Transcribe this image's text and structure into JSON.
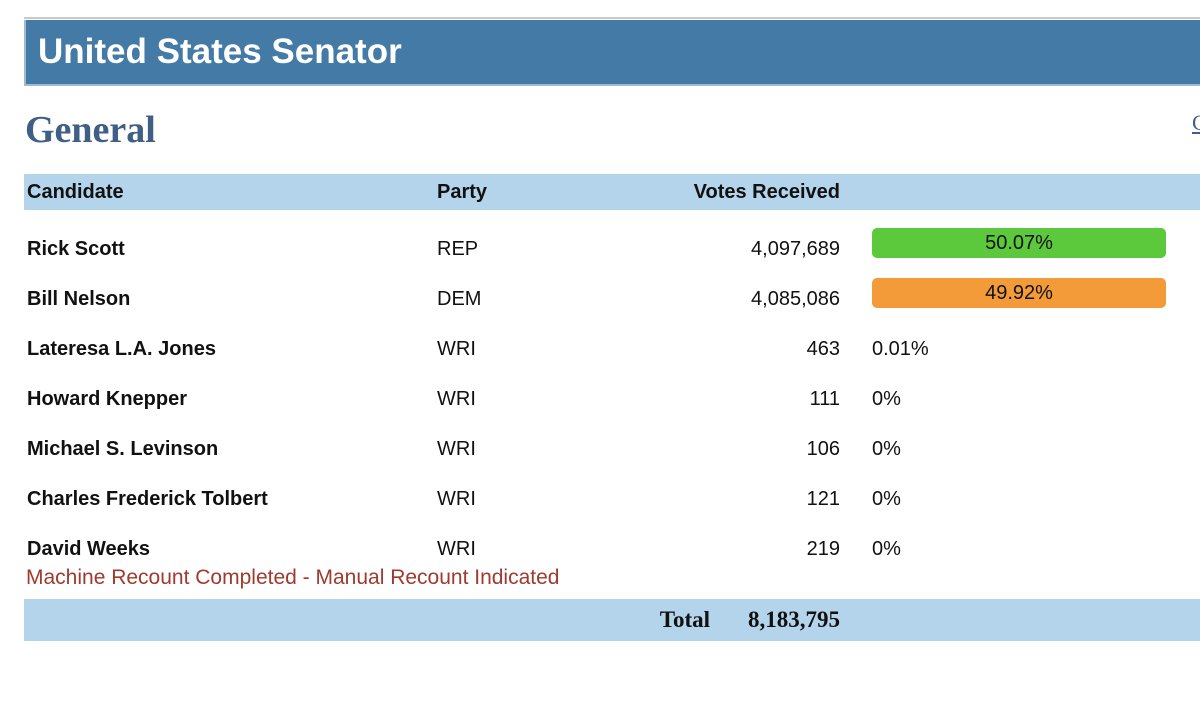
{
  "header": {
    "title": "United States Senator"
  },
  "section": {
    "title": "General",
    "corner_link": "C"
  },
  "table": {
    "columns": {
      "candidate": "Candidate",
      "party": "Party",
      "votes": "Votes Received"
    },
    "rows": [
      {
        "name": "Rick Scott",
        "party": "REP",
        "votes": "4,097,689",
        "percent": "50.07%",
        "bar_color": "#5cc83b"
      },
      {
        "name": "Bill Nelson",
        "party": "DEM",
        "votes": "4,085,086",
        "percent": "49.92%",
        "bar_color": "#f29b38"
      },
      {
        "name": "Lateresa L.A. Jones",
        "party": "WRI",
        "votes": "463",
        "percent": "0.01%"
      },
      {
        "name": "Howard Knepper",
        "party": "WRI",
        "votes": "111",
        "percent": "0%"
      },
      {
        "name": "Michael S. Levinson",
        "party": "WRI",
        "votes": "106",
        "percent": "0%"
      },
      {
        "name": "Charles Frederick Tolbert",
        "party": "WRI",
        "votes": "121",
        "percent": "0%"
      },
      {
        "name": "David Weeks",
        "party": "WRI",
        "votes": "219",
        "percent": "0%"
      }
    ],
    "status_note": "Machine Recount Completed - Manual Recount Indicated",
    "total_label": "Total",
    "total_value": "8,183,795"
  }
}
